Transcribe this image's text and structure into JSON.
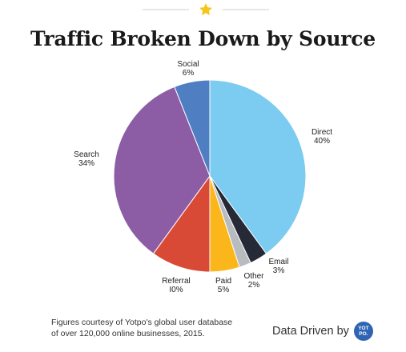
{
  "title": "Traffic Broken Down by Source",
  "chart_data": {
    "type": "pie",
    "title": "Traffic Broken Down by Source",
    "categories": [
      "Direct",
      "Email",
      "Other",
      "Paid",
      "Referral",
      "Search",
      "Social"
    ],
    "values": [
      40,
      3,
      2,
      5,
      10,
      34,
      6
    ],
    "value_labels": [
      "40%",
      "3%",
      "2%",
      "5%",
      "I0%",
      "34%",
      "6%"
    ],
    "colors": [
      "#7ccbf0",
      "#262a36",
      "#b8bcc0",
      "#fbb61b",
      "#d94a36",
      "#8c5ca5",
      "#4f7ec3"
    ],
    "legend": "none"
  },
  "footer": {
    "note_line1": "Figures courtesy of Yotpo's global user database",
    "note_line2": "of over 120,000 online businesses, 2015.",
    "brand_text": "Data Driven by",
    "logo_line1": "YOT",
    "logo_line2": "PO."
  },
  "accent_colors": {
    "star": "#f5c518",
    "rule": "#cccccc"
  }
}
